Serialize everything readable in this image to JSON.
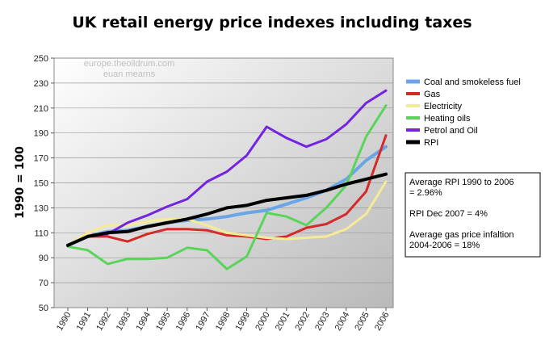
{
  "chart_data": {
    "type": "line",
    "title": "UK retail energy price indexes including taxes",
    "ylabel": "1990 = 100",
    "xlabel": "",
    "ylim": [
      50,
      250
    ],
    "yticks": [
      50,
      70,
      90,
      110,
      130,
      150,
      170,
      190,
      210,
      230,
      250
    ],
    "x": [
      "1990",
      "1991",
      "1992",
      "1993",
      "1994",
      "1995",
      "1996",
      "1997",
      "1998",
      "1999",
      "2000",
      "2001",
      "2002",
      "2003",
      "2004",
      "2005",
      "2006"
    ],
    "grid": true,
    "legend_position": "right",
    "series": [
      {
        "name": "Coal and smokeless fuel",
        "color": "#6aa6e6",
        "width": 4,
        "values": [
          100,
          107,
          111,
          112,
          115,
          118,
          120,
          121,
          123,
          126,
          128,
          133,
          138,
          144,
          153,
          168,
          179
        ]
      },
      {
        "name": "Gas",
        "color": "#d42a2a",
        "width": 3,
        "values": [
          100,
          107,
          107,
          103,
          109,
          113,
          113,
          112,
          108,
          107,
          105,
          107,
          114,
          117,
          125,
          143,
          188
        ]
      },
      {
        "name": "Electricity",
        "color": "#f5eb96",
        "width": 3,
        "values": [
          100,
          110,
          116,
          116,
          119,
          121,
          121,
          116,
          110,
          108,
          106,
          105,
          106,
          107,
          113,
          125,
          151
        ]
      },
      {
        "name": "Heating oils",
        "color": "#5ad45a",
        "width": 3,
        "values": [
          99,
          96,
          85,
          89,
          89,
          90,
          98,
          96,
          81,
          91,
          126,
          123,
          116,
          130,
          148,
          187,
          212
        ]
      },
      {
        "name": "Petrol and Oil",
        "color": "#7324e0",
        "width": 3,
        "values": [
          100,
          107,
          109,
          118,
          124,
          131,
          137,
          151,
          159,
          172,
          195,
          186,
          179,
          185,
          197,
          214,
          224
        ]
      },
      {
        "name": "RPI",
        "color": "#000000",
        "width": 4,
        "values": [
          100,
          107,
          110,
          111,
          115,
          118,
          121,
          125,
          130,
          132,
          136,
          138,
          140,
          144,
          149,
          153,
          157
        ]
      }
    ],
    "annotations": [
      "europe.theoildrum.com",
      "euan mearns"
    ],
    "note_box": [
      "Average RPI 1990 to 2006",
      "= 2.96%",
      "RPI Dec 2007 = 4%",
      "Average gas price infaltion",
      "2004-2006 = 18%"
    ]
  }
}
